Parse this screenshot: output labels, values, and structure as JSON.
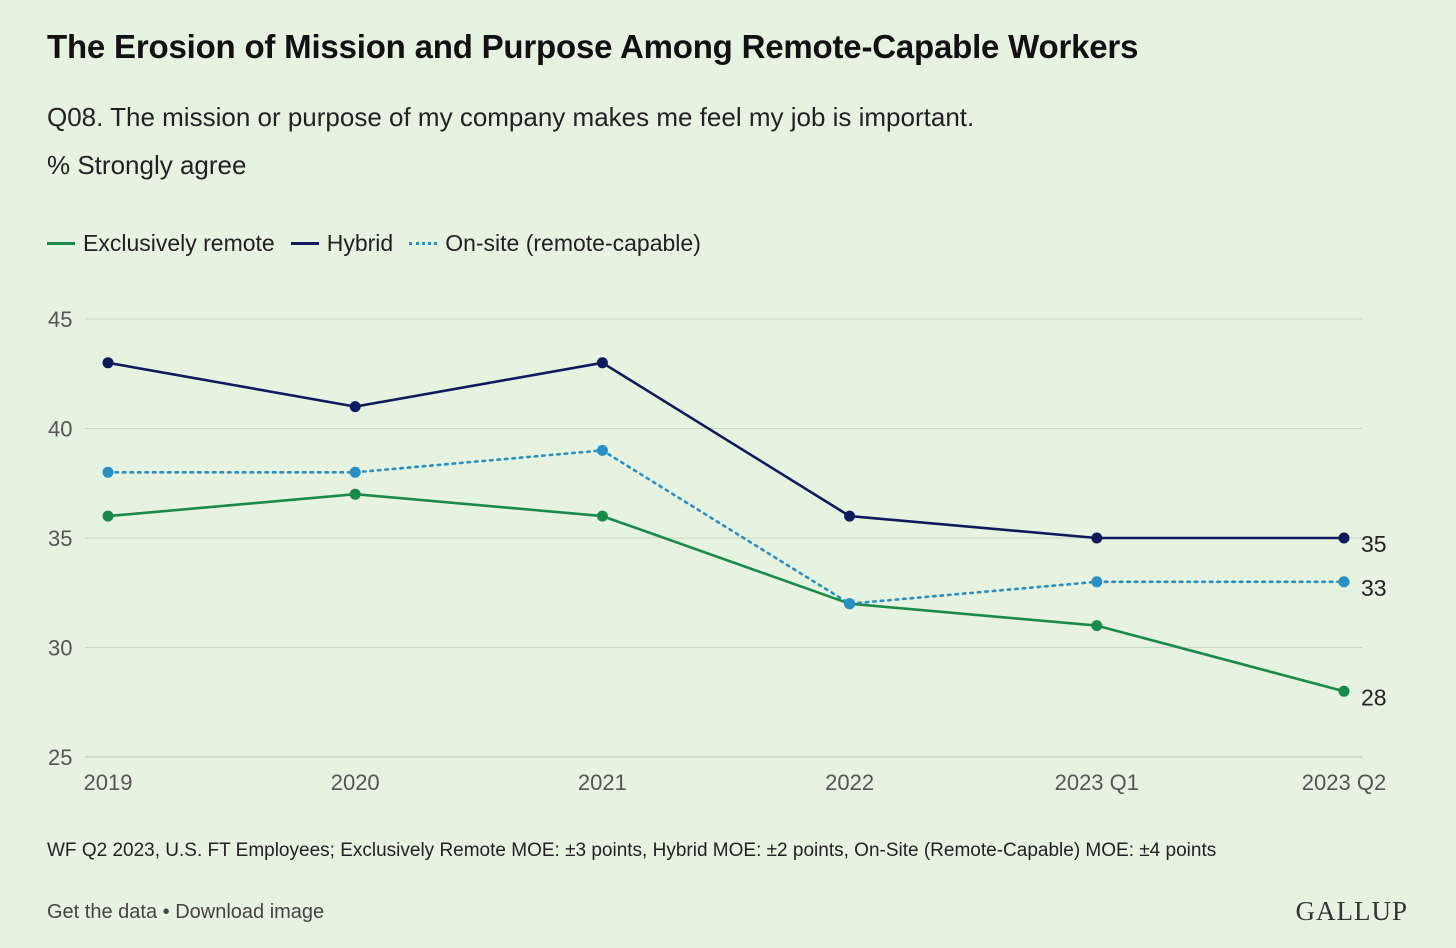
{
  "header": {
    "title": "The Erosion of Mission and Purpose Among Remote-Capable Workers",
    "subtitle": "Q08. The mission or purpose of my company makes me feel my job is important.",
    "unit": "% Strongly agree"
  },
  "footer": {
    "source": "WF Q2 2023, U.S. FT Employees; Exclusively Remote MOE: ±3 points, Hybrid MOE: ±2 points, On-Site (Remote-Capable) MOE: ±4 points",
    "get_data": "Get the data",
    "separator": " • ",
    "download": "Download image",
    "brand": "GALLUP"
  },
  "chart_data": {
    "type": "line",
    "categories": [
      "2019",
      "2020",
      "2021",
      "2022",
      "2023 Q1",
      "2023 Q2"
    ],
    "ylim": [
      25,
      45
    ],
    "yticks": [
      25,
      30,
      35,
      40,
      45
    ],
    "grid": true,
    "legend_position": "top-left",
    "series": [
      {
        "name": "Exclusively remote",
        "color": "#1a8a4a",
        "dash": "solid",
        "values": [
          36,
          37,
          36,
          32,
          31,
          28
        ],
        "end_label": "28"
      },
      {
        "name": "Hybrid",
        "color": "#0f1a5c",
        "dash": "solid",
        "values": [
          43,
          41,
          43,
          36,
          35,
          35
        ],
        "end_label": "35"
      },
      {
        "name": "On-site (remote-capable)",
        "color": "#2a8fc4",
        "dash": "dotted",
        "values": [
          38,
          38,
          39,
          32,
          33,
          33
        ],
        "end_label": "33"
      }
    ]
  }
}
